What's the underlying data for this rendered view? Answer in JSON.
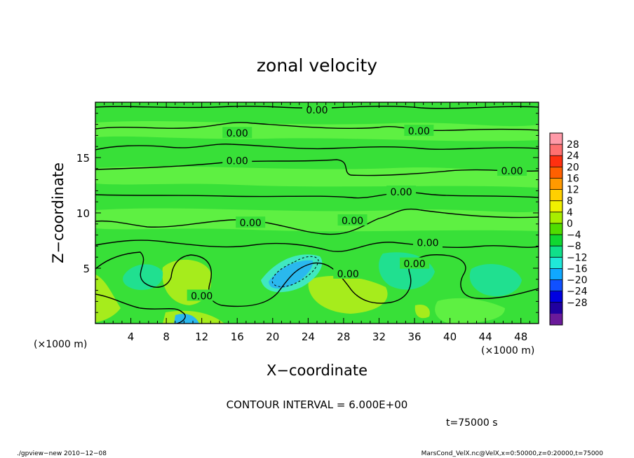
{
  "chart_data": {
    "type": "heatmap",
    "title": "zonal velocity",
    "xlabel": "X−coordinate",
    "ylabel": "Z−coordinate",
    "x_unit": "(×1000 m)",
    "y_unit": "(×1000 m)",
    "xlim": [
      0,
      50
    ],
    "ylim": [
      0,
      20
    ],
    "x_ticks": [
      4,
      8,
      12,
      16,
      20,
      24,
      28,
      32,
      36,
      40,
      44,
      48
    ],
    "y_ticks": [
      5,
      10,
      15
    ],
    "contour_label": "0.00",
    "contour_labels_pos": [
      {
        "x": 25.0,
        "z": 19.3
      },
      {
        "x": 16.0,
        "z": 17.2
      },
      {
        "x": 36.5,
        "z": 17.4
      },
      {
        "x": 16.0,
        "z": 14.7
      },
      {
        "x": 47.0,
        "z": 13.8
      },
      {
        "x": 34.5,
        "z": 11.9
      },
      {
        "x": 17.5,
        "z": 9.1
      },
      {
        "x": 29.0,
        "z": 9.3
      },
      {
        "x": 37.5,
        "z": 7.3
      },
      {
        "x": 36.0,
        "z": 5.4
      },
      {
        "x": 28.5,
        "z": 4.5
      },
      {
        "x": 12.0,
        "z": 2.5
      }
    ],
    "contour_interval": "CONTOUR INTERVAL = 6.000E+00",
    "time_label": "t=75000 s",
    "colorbar": {
      "labels": [
        "28",
        "24",
        "20",
        "16",
        "12",
        "8",
        "4",
        "0",
        "−4",
        "−8",
        "−12",
        "−16",
        "−20",
        "−24",
        "−28"
      ],
      "colors": [
        "#ff9aa8",
        "#ff7070",
        "#ff3010",
        "#ff6000",
        "#ff9a00",
        "#ffd000",
        "#f0f000",
        "#a8ee00",
        "#50dd00",
        "#10d830",
        "#10e08a",
        "#20e8d8",
        "#10a8ff",
        "#1050ff",
        "#0000e0",
        "#2000a0",
        "#6a1a9a"
      ]
    },
    "field_colors": {
      "background": "#38e038",
      "light_band": "#5ef042",
      "yellow_green": "#a6ec1c",
      "cyan": "#40e8c0",
      "teal": "#20e090",
      "blue": "#2ab8ee"
    }
  },
  "footer": {
    "left": "./gpview−new   2010−12−08",
    "right": "MarsCond_VelX.nc@VelX,x=0:50000,z=0:20000,t=75000"
  }
}
